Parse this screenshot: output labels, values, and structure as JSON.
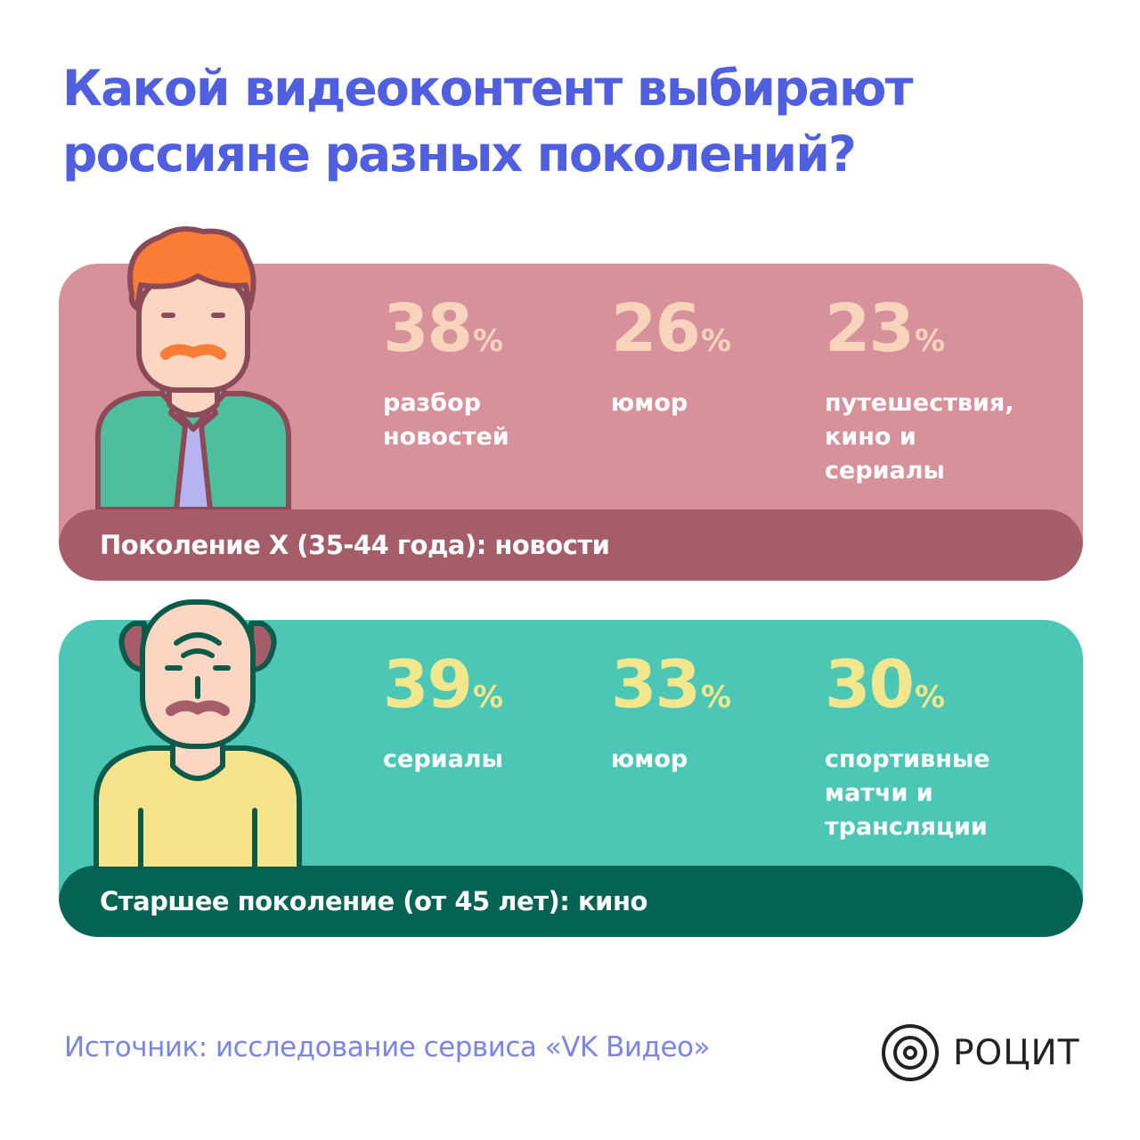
{
  "title": "Какой видеоконтент выбирают россияне разных поколений?",
  "generation_x": {
    "label": "Поколение X (35-44 года): новости",
    "stats": [
      {
        "value": "38",
        "unit": "%",
        "label": "разбор новостей"
      },
      {
        "value": "26",
        "unit": "%",
        "label": "юмор"
      },
      {
        "value": "23",
        "unit": "%",
        "label": "путешествия, кино и сериалы"
      }
    ]
  },
  "older_generation": {
    "label": "Старшее поколение (от 45 лет): кино",
    "stats": [
      {
        "value": "39",
        "unit": "%",
        "label": "сериалы"
      },
      {
        "value": "33",
        "unit": "%",
        "label": "юмор"
      },
      {
        "value": "30",
        "unit": "%",
        "label": "спортивные матчи и трансляции"
      }
    ]
  },
  "footer": {
    "source": "Источник: исследование сервиса «VK Видео»",
    "brand": "РОЦИТ"
  },
  "colors": {
    "title": "#4f5fe0",
    "card_x": "#d7919b",
    "bar_x": "#a55e69",
    "card_old": "#4cc7b6",
    "bar_old": "#046352",
    "num_x": "#f8d4bc",
    "num_old": "#f2e78c"
  },
  "icons": {
    "generation_x_avatar": "man-with-tie-icon",
    "older_avatar": "bald-old-man-icon",
    "brand_logo": "concentric-circles-logo"
  }
}
